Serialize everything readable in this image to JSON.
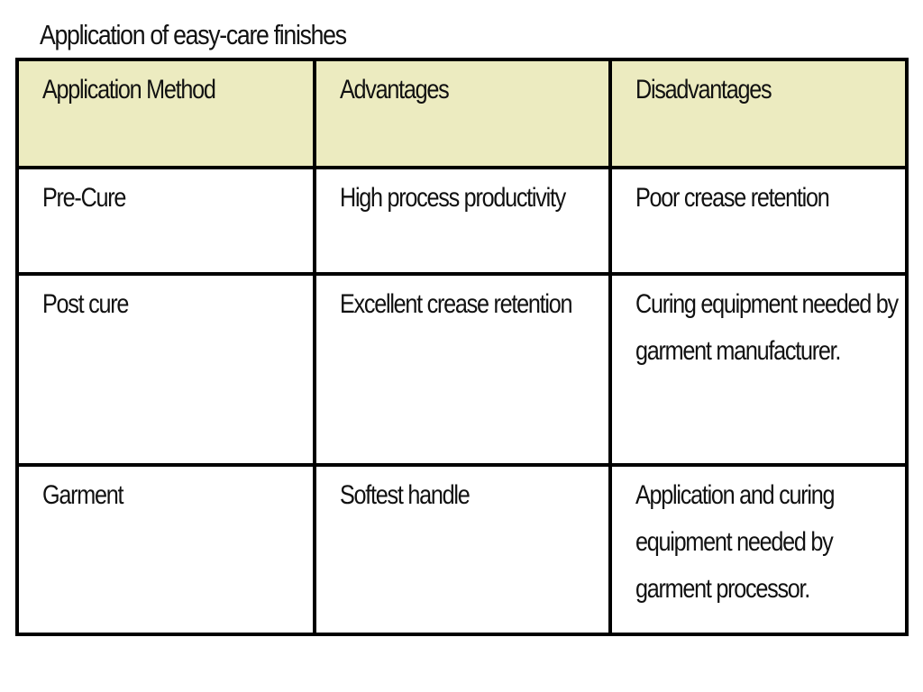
{
  "title": "Application of easy-care  finishes",
  "table": {
    "headers": [
      "Application Method",
      "Advantages",
      "Disadvantages"
    ],
    "header_bg": "#ecebc0",
    "rows": [
      {
        "method": "Pre-Cure",
        "advantages": "High process productivity",
        "disadvantages": "Poor crease retention"
      },
      {
        "method": "Post cure",
        "advantages": "Excellent crease  retention",
        "disadvantages": "Curing equipment needed by garment manufacturer."
      },
      {
        "method": "Garment",
        "advantages": "Softest handle",
        "disadvantages": "Application and curing equipment needed by garment processor."
      }
    ]
  }
}
